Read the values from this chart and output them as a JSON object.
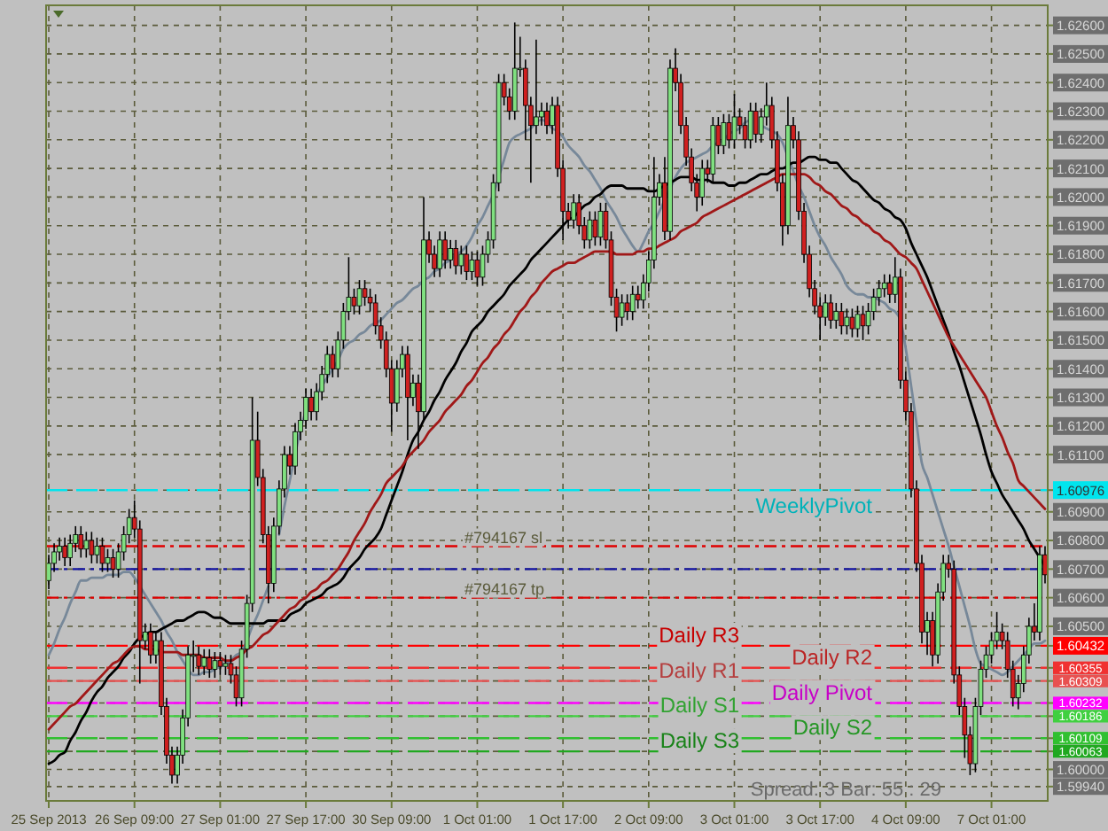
{
  "chart_data": {
    "type": "candlestick",
    "categories": [
      "25 Sep 2013",
      null,
      null,
      null,
      null,
      null,
      null,
      null,
      null,
      null,
      null,
      null,
      null,
      null,
      null,
      null,
      "26 Sep 09:00",
      null,
      null,
      null,
      null,
      null,
      null,
      null,
      null,
      null,
      null,
      null,
      null,
      null,
      null,
      null,
      "27 Sep 01:00",
      null,
      null,
      null,
      null,
      null,
      null,
      null,
      null,
      null,
      null,
      null,
      null,
      null,
      null,
      null,
      "27 Sep 17:00",
      null,
      null,
      null,
      null,
      null,
      null,
      null,
      null,
      null,
      null,
      null,
      null,
      null,
      null,
      null,
      "30 Sep 09:00",
      null,
      null,
      null,
      null,
      null,
      null,
      null,
      null,
      null,
      null,
      null,
      null,
      null,
      null,
      null,
      "1 Oct 01:00",
      null,
      null,
      null,
      null,
      null,
      null,
      null,
      null,
      null,
      null,
      null,
      null,
      null,
      null,
      null,
      "1 Oct 17:00",
      null,
      null,
      null,
      null,
      null,
      null,
      null,
      null,
      null,
      null,
      null,
      null,
      null,
      null,
      null,
      "2 Oct 09:00",
      null,
      null,
      null,
      null,
      null,
      null,
      null,
      null,
      null,
      null,
      null,
      null,
      null,
      null,
      null,
      "3 Oct 01:00",
      null,
      null,
      null,
      null,
      null,
      null,
      null,
      null,
      null,
      null,
      null,
      null,
      null,
      null,
      null,
      "3 Oct 17:00",
      null,
      null,
      null,
      null,
      null,
      null,
      null,
      null,
      null,
      null,
      null,
      null,
      null,
      null,
      null,
      "4 Oct 09:00",
      null,
      null,
      null,
      null,
      null,
      null,
      null,
      null,
      null,
      null,
      null,
      null,
      null,
      null,
      null,
      "7 Oct 01:00",
      null,
      null,
      null,
      null,
      null,
      null,
      null,
      null,
      null,
      null
    ],
    "ohlc": [
      [
        1.6066,
        1.6075,
        1.6063,
        1.6072
      ],
      [
        1.6072,
        1.6079,
        1.6069,
        1.6076
      ],
      [
        1.6076,
        1.6081,
        1.6073,
        1.6078
      ],
      [
        1.6078,
        1.6081,
        1.6071,
        1.6074
      ],
      [
        1.6074,
        1.6082,
        1.6071,
        1.6079
      ],
      [
        1.6079,
        1.6085,
        1.6076,
        1.6082
      ],
      [
        1.6082,
        1.6085,
        1.6074,
        1.6077
      ],
      [
        1.6077,
        1.6083,
        1.6074,
        1.608
      ],
      [
        1.608,
        1.6083,
        1.6072,
        1.6075
      ],
      [
        1.6075,
        1.6081,
        1.6072,
        1.6078
      ],
      [
        1.6078,
        1.6081,
        1.6069,
        1.6072
      ],
      [
        1.6072,
        1.6077,
        1.6069,
        1.6074
      ],
      [
        1.6074,
        1.6077,
        1.6067,
        1.607
      ],
      [
        1.607,
        1.6079,
        1.6067,
        1.6076
      ],
      [
        1.6076,
        1.6085,
        1.6073,
        1.6082
      ],
      [
        1.6082,
        1.6091,
        1.6079,
        1.6088
      ],
      [
        1.6088,
        1.6094,
        1.6081,
        1.6084
      ],
      [
        1.6084,
        1.6087,
        1.603,
        1.6045
      ],
      [
        1.6045,
        1.6051,
        1.6042,
        1.6048
      ],
      [
        1.6048,
        1.6051,
        1.6037,
        1.604
      ],
      [
        1.604,
        1.6048,
        1.6037,
        1.6045
      ],
      [
        1.6045,
        1.6048,
        1.6019,
        1.6022
      ],
      [
        1.6022,
        1.6025,
        1.6002,
        1.6005
      ],
      [
        1.6005,
        1.6008,
        1.5995,
        1.5998
      ],
      [
        1.5998,
        1.6008,
        1.5995,
        1.6005
      ],
      [
        1.6005,
        1.6021,
        1.6002,
        1.6018
      ],
      [
        1.6018,
        1.6043,
        1.6015,
        1.604
      ],
      [
        1.604,
        1.6045,
        1.6034,
        1.604
      ],
      [
        1.604,
        1.6043,
        1.6033,
        1.6036
      ],
      [
        1.6036,
        1.6042,
        1.6033,
        1.6039
      ],
      [
        1.6039,
        1.6042,
        1.6032,
        1.6035
      ],
      [
        1.6035,
        1.6041,
        1.6032,
        1.6038
      ],
      [
        1.6038,
        1.6041,
        1.6033,
        1.6036
      ],
      [
        1.6036,
        1.604,
        1.6033,
        1.6037
      ],
      [
        1.6037,
        1.604,
        1.603,
        1.6033
      ],
      [
        1.6033,
        1.6036,
        1.6022,
        1.6025
      ],
      [
        1.6025,
        1.6045,
        1.6022,
        1.6042
      ],
      [
        1.6042,
        1.6061,
        1.6039,
        1.6058
      ],
      [
        1.6058,
        1.613,
        1.6055,
        1.6115
      ],
      [
        1.6115,
        1.6125,
        1.6099,
        1.6102
      ],
      [
        1.6102,
        1.6105,
        1.6079,
        1.6082
      ],
      [
        1.6082,
        1.6085,
        1.6058,
        1.6065
      ],
      [
        1.6065,
        1.6088,
        1.6062,
        1.6085
      ],
      [
        1.6085,
        1.6101,
        1.6082,
        1.6098
      ],
      [
        1.6098,
        1.6113,
        1.6095,
        1.611
      ],
      [
        1.611,
        1.6113,
        1.6103,
        1.6106
      ],
      [
        1.6106,
        1.6121,
        1.6103,
        1.6118
      ],
      [
        1.6118,
        1.6125,
        1.6115,
        1.6122
      ],
      [
        1.6122,
        1.6133,
        1.6119,
        1.613
      ],
      [
        1.613,
        1.6133,
        1.6122,
        1.6125
      ],
      [
        1.6125,
        1.6135,
        1.6122,
        1.6132
      ],
      [
        1.6132,
        1.6141,
        1.6129,
        1.6138
      ],
      [
        1.6138,
        1.6148,
        1.6135,
        1.6145
      ],
      [
        1.6145,
        1.6148,
        1.6137,
        1.614
      ],
      [
        1.614,
        1.6153,
        1.6137,
        1.615
      ],
      [
        1.615,
        1.6163,
        1.6147,
        1.616
      ],
      [
        1.616,
        1.6179,
        1.6157,
        1.6165
      ],
      [
        1.6165,
        1.6168,
        1.6159,
        1.6162
      ],
      [
        1.6162,
        1.6171,
        1.6159,
        1.6168
      ],
      [
        1.6168,
        1.6171,
        1.6162,
        1.6165
      ],
      [
        1.6165,
        1.6168,
        1.616,
        1.6163
      ],
      [
        1.6163,
        1.6166,
        1.6152,
        1.6155
      ],
      [
        1.6155,
        1.6158,
        1.6147,
        1.615
      ],
      [
        1.615,
        1.6153,
        1.6137,
        1.614
      ],
      [
        1.614,
        1.6143,
        1.6118,
        1.6128
      ],
      [
        1.6128,
        1.6143,
        1.6125,
        1.614
      ],
      [
        1.614,
        1.6148,
        1.6137,
        1.6145
      ],
      [
        1.6145,
        1.6148,
        1.6115,
        1.613
      ],
      [
        1.613,
        1.6138,
        1.6127,
        1.6135
      ],
      [
        1.6135,
        1.6138,
        1.6112,
        1.6125
      ],
      [
        1.6125,
        1.62,
        1.6122,
        1.6185
      ],
      [
        1.6185,
        1.6188,
        1.6177,
        1.618
      ],
      [
        1.618,
        1.6183,
        1.6172,
        1.6175
      ],
      [
        1.6175,
        1.6188,
        1.6172,
        1.6185
      ],
      [
        1.6185,
        1.6188,
        1.6175,
        1.6178
      ],
      [
        1.6178,
        1.6185,
        1.6175,
        1.6182
      ],
      [
        1.6182,
        1.6185,
        1.6173,
        1.6176
      ],
      [
        1.6176,
        1.6183,
        1.6173,
        1.618
      ],
      [
        1.618,
        1.6183,
        1.6171,
        1.6174
      ],
      [
        1.6174,
        1.6181,
        1.6171,
        1.6178
      ],
      [
        1.6178,
        1.6181,
        1.6169,
        1.6172
      ],
      [
        1.6172,
        1.6183,
        1.6169,
        1.618
      ],
      [
        1.618,
        1.6188,
        1.6177,
        1.6185
      ],
      [
        1.6185,
        1.6208,
        1.6182,
        1.6205
      ],
      [
        1.6205,
        1.6243,
        1.6202,
        1.624
      ],
      [
        1.624,
        1.6243,
        1.6232,
        1.6235
      ],
      [
        1.6235,
        1.6238,
        1.6227,
        1.623
      ],
      [
        1.623,
        1.6261,
        1.6227,
        1.6245
      ],
      [
        1.6245,
        1.6256,
        1.6242,
        1.6245
      ],
      [
        1.6245,
        1.6248,
        1.622,
        1.6232
      ],
      [
        1.6232,
        1.6235,
        1.6205,
        1.6225
      ],
      [
        1.6225,
        1.6255,
        1.6222,
        1.6228
      ],
      [
        1.6228,
        1.6233,
        1.6225,
        1.623
      ],
      [
        1.623,
        1.6233,
        1.6222,
        1.6225
      ],
      [
        1.6225,
        1.6235,
        1.6222,
        1.6232
      ],
      [
        1.6232,
        1.6235,
        1.6207,
        1.621
      ],
      [
        1.621,
        1.6213,
        1.6185,
        1.6195
      ],
      [
        1.6195,
        1.6198,
        1.6189,
        1.6192
      ],
      [
        1.6192,
        1.6201,
        1.6189,
        1.6198
      ],
      [
        1.6198,
        1.6201,
        1.6187,
        1.619
      ],
      [
        1.619,
        1.6193,
        1.6182,
        1.6185
      ],
      [
        1.6185,
        1.6195,
        1.6182,
        1.6192
      ],
      [
        1.6192,
        1.6195,
        1.6183,
        1.6186
      ],
      [
        1.6186,
        1.6198,
        1.6183,
        1.6195
      ],
      [
        1.6195,
        1.6198,
        1.6182,
        1.6185
      ],
      [
        1.6185,
        1.6188,
        1.6162,
        1.6165
      ],
      [
        1.6165,
        1.6168,
        1.6153,
        1.6158
      ],
      [
        1.6158,
        1.6166,
        1.6155,
        1.6163
      ],
      [
        1.6163,
        1.6166,
        1.6157,
        1.616
      ],
      [
        1.616,
        1.6169,
        1.6157,
        1.6166
      ],
      [
        1.6166,
        1.6169,
        1.6161,
        1.6164
      ],
      [
        1.6164,
        1.6173,
        1.6161,
        1.617
      ],
      [
        1.617,
        1.6181,
        1.6167,
        1.6178
      ],
      [
        1.6178,
        1.6214,
        1.6175,
        1.62
      ],
      [
        1.62,
        1.6208,
        1.6197,
        1.6205
      ],
      [
        1.6205,
        1.6214,
        1.6185,
        1.6188
      ],
      [
        1.6188,
        1.6248,
        1.6185,
        1.6245
      ],
      [
        1.6245,
        1.6252,
        1.6237,
        1.624
      ],
      [
        1.624,
        1.6243,
        1.6222,
        1.6225
      ],
      [
        1.6225,
        1.6228,
        1.6211,
        1.6214
      ],
      [
        1.6214,
        1.6217,
        1.6202,
        1.6205
      ],
      [
        1.6205,
        1.6208,
        1.6195,
        1.62
      ],
      [
        1.62,
        1.6213,
        1.6197,
        1.621
      ],
      [
        1.621,
        1.6213,
        1.6205,
        1.6208
      ],
      [
        1.6208,
        1.6228,
        1.6205,
        1.6225
      ],
      [
        1.6225,
        1.6228,
        1.6215,
        1.6218
      ],
      [
        1.6218,
        1.6229,
        1.6215,
        1.6226
      ],
      [
        1.6226,
        1.6229,
        1.6217,
        1.622
      ],
      [
        1.622,
        1.6236,
        1.6217,
        1.6228
      ],
      [
        1.6228,
        1.6231,
        1.6222,
        1.6225
      ],
      [
        1.6225,
        1.6228,
        1.6217,
        1.622
      ],
      [
        1.622,
        1.6233,
        1.6217,
        1.623
      ],
      [
        1.623,
        1.6233,
        1.6219,
        1.6222
      ],
      [
        1.6222,
        1.6231,
        1.6219,
        1.6228
      ],
      [
        1.6228,
        1.624,
        1.6225,
        1.6232
      ],
      [
        1.6232,
        1.6235,
        1.6217,
        1.622
      ],
      [
        1.622,
        1.6223,
        1.6202,
        1.6205
      ],
      [
        1.6205,
        1.6208,
        1.6183,
        1.619
      ],
      [
        1.619,
        1.6235,
        1.6187,
        1.6225
      ],
      [
        1.6225,
        1.6228,
        1.6217,
        1.622
      ],
      [
        1.622,
        1.6223,
        1.6192,
        1.6195
      ],
      [
        1.6195,
        1.6198,
        1.6177,
        1.618
      ],
      [
        1.618,
        1.6183,
        1.6165,
        1.6168
      ],
      [
        1.6168,
        1.6171,
        1.6159,
        1.6162
      ],
      [
        1.6162,
        1.6165,
        1.615,
        1.6158
      ],
      [
        1.6158,
        1.6166,
        1.6155,
        1.6163
      ],
      [
        1.6163,
        1.6166,
        1.6154,
        1.6157
      ],
      [
        1.6157,
        1.6163,
        1.6154,
        1.616
      ],
      [
        1.616,
        1.6163,
        1.6152,
        1.6155
      ],
      [
        1.6155,
        1.6161,
        1.6152,
        1.6158
      ],
      [
        1.6158,
        1.6161,
        1.6151,
        1.6154
      ],
      [
        1.6154,
        1.6162,
        1.6151,
        1.6159
      ],
      [
        1.6159,
        1.6162,
        1.615,
        1.6155
      ],
      [
        1.6155,
        1.6163,
        1.6152,
        1.616
      ],
      [
        1.616,
        1.6168,
        1.6157,
        1.6165
      ],
      [
        1.6165,
        1.6171,
        1.6162,
        1.6168
      ],
      [
        1.6168,
        1.6173,
        1.6165,
        1.617
      ],
      [
        1.617,
        1.6173,
        1.6163,
        1.6166
      ],
      [
        1.6166,
        1.6179,
        1.6163,
        1.6172
      ],
      [
        1.6172,
        1.6175,
        1.6133,
        1.6136
      ],
      [
        1.6136,
        1.6139,
        1.6122,
        1.6125
      ],
      [
        1.6125,
        1.6128,
        1.6095,
        1.6098
      ],
      [
        1.6098,
        1.6101,
        1.6069,
        1.6072
      ],
      [
        1.6072,
        1.6075,
        1.6044,
        1.6048
      ],
      [
        1.6048,
        1.6055,
        1.604,
        1.6052
      ],
      [
        1.6052,
        1.6055,
        1.6036,
        1.604
      ],
      [
        1.604,
        1.6065,
        1.6037,
        1.6062
      ],
      [
        1.6062,
        1.6075,
        1.6059,
        1.6072
      ],
      [
        1.6072,
        1.6075,
        1.6067,
        1.607
      ],
      [
        1.607,
        1.6073,
        1.603,
        1.6033
      ],
      [
        1.6033,
        1.6036,
        1.6019,
        1.6022
      ],
      [
        1.6022,
        1.6025,
        1.6004,
        1.6012
      ],
      [
        1.6012,
        1.6015,
        1.5998,
        1.6002
      ],
      [
        1.6002,
        1.6025,
        1.5999,
        1.6022
      ],
      [
        1.6022,
        1.6038,
        1.6019,
        1.6035
      ],
      [
        1.6035,
        1.6043,
        1.6032,
        1.604
      ],
      [
        1.604,
        1.6048,
        1.6037,
        1.6045
      ],
      [
        1.6045,
        1.6055,
        1.6042,
        1.6048
      ],
      [
        1.6048,
        1.6051,
        1.6042,
        1.6045
      ],
      [
        1.6045,
        1.6048,
        1.6032,
        1.6035
      ],
      [
        1.6035,
        1.6038,
        1.6022,
        1.6025
      ],
      [
        1.6025,
        1.6033,
        1.6021,
        1.603
      ],
      [
        1.603,
        1.6043,
        1.6027,
        1.604
      ],
      [
        1.604,
        1.6053,
        1.6037,
        1.605
      ],
      [
        1.605,
        1.6058,
        1.6045,
        1.6048
      ],
      [
        1.6048,
        1.6078,
        1.6045,
        1.6075
      ],
      [
        1.6075,
        1.6078,
        1.6065,
        1.6068
      ]
    ],
    "series": [
      {
        "type": "line",
        "color": "#778899",
        "values": [
          1.604,
          1.6044,
          1.6049,
          1.6053,
          1.6058,
          1.6062,
          1.6066,
          1.6066,
          1.6067,
          1.6067,
          1.6067,
          1.6068,
          1.6068,
          1.6068,
          1.6069,
          1.6069,
          1.6067,
          1.6064,
          1.6061,
          1.6058,
          1.6055,
          1.6052,
          1.6048,
          1.6045,
          1.6041,
          1.6038,
          1.6035,
          1.6033,
          1.6033,
          1.6034,
          1.6034,
          1.6035,
          1.6036,
          1.6037,
          1.6038,
          1.604,
          1.6041,
          1.6045,
          1.605,
          1.6054,
          1.6059,
          1.6064,
          null,
          1.6082,
          1.6092,
          1.6101,
          1.611,
          1.6119,
          1.6125,
          null,
          1.6131,
          1.6134,
          1.6137,
          1.614,
          1.6143,
          1.6147,
          1.6149,
          1.615,
          1.6152,
          1.6153,
          1.6155,
          1.6156,
          1.6157,
          1.6159,
          1.6161,
          1.6163,
          1.6164,
          1.6166,
          1.6168,
          1.6169,
          1.6171,
          1.6172,
          1.6174,
          1.6175,
          1.6177,
          1.6178,
          1.618,
          1.6181,
          1.6183,
          1.6186,
          1.619,
          1.6193,
          1.6197,
          1.6201,
          1.6207,
          1.6213,
          1.6219,
          1.6221,
          1.6222,
          1.6223,
          1.6224,
          1.6226,
          1.6227,
          1.6226,
          1.6224,
          1.6223,
          1.6221,
          1.6218,
          1.6216,
          1.6214,
          1.6211,
          1.6209,
          1.6206,
          1.6203,
          1.6199,
          1.6196,
          1.6193,
          1.6189,
          1.6186,
          1.6183,
          1.6181,
          1.6184,
          1.6188,
          1.6191,
          1.6195,
          1.6199,
          1.6203,
          1.6207,
          1.621,
          1.6212,
          1.6213,
          1.6214,
          1.6215,
          1.6216,
          1.6218,
          1.6219,
          1.622,
          1.6222,
          1.6223,
          1.6224,
          1.6226,
          1.6227,
          null,
          1.6225,
          1.6224,
          1.6223,
          1.6222,
          1.6219,
          1.6214,
          1.6209,
          1.6204,
          1.62,
          1.6195,
          1.619,
          1.6186,
          1.6183,
          1.6179,
          1.6176,
          1.6173,
          1.6169,
          1.6167,
          1.6166,
          1.6166,
          1.6165,
          1.6165,
          1.6164,
          1.6163,
          1.6161,
          1.616,
          1.6157,
          1.6147,
          1.6134,
          1.6121,
          1.6107,
          1.6102,
          1.6096,
          1.609,
          1.6084,
          1.6078,
          1.6071,
          1.6064,
          1.6057,
          1.605,
          1.6042,
          1.6037,
          1.6036,
          1.6035,
          1.6034,
          1.6033,
          1.6034,
          1.6036,
          1.6038,
          1.604,
          1.6042,
          1.6044,
          1.6044,
          1.6045
        ]
      },
      {
        "type": "line",
        "color": "#000000",
        "values": [
          1.6002,
          1.6003,
          1.6005,
          1.6006,
          1.601,
          1.6013,
          1.6017,
          1.602,
          1.6024,
          1.6027,
          1.6029,
          1.6032,
          1.6034,
          1.6036,
          1.6039,
          1.6041,
          1.6044,
          1.6046,
          1.6047,
          1.6048,
          1.6048,
          1.6049,
          1.605,
          1.6051,
          1.6052,
          1.6052,
          1.6053,
          1.6054,
          1.6055,
          1.6055,
          1.6054,
          1.6053,
          1.6053,
          1.6052,
          1.6051,
          1.6051,
          1.6051,
          1.6051,
          1.6051,
          1.6051,
          1.6051,
          1.6052,
          1.6052,
          1.6052,
          1.6052,
          1.6054,
          1.6055,
          1.6056,
          1.6058,
          1.6059,
          1.606,
          1.6061,
          1.6063,
          1.6064,
          1.6065,
          1.6067,
          1.607,
          1.6072,
          1.6074,
          1.6077,
          1.6079,
          1.6081,
          1.6084,
          1.6089,
          1.6094,
          1.6099,
          1.6104,
          1.611,
          1.6115,
          1.6118,
          1.6122,
          1.6125,
          1.6129,
          1.6132,
          1.6136,
          1.6139,
          1.6142,
          1.6146,
          1.6149,
          1.6153,
          1.6155,
          1.6157,
          1.616,
          1.6162,
          1.6164,
          1.6166,
          1.6169,
          1.6171,
          1.6173,
          1.6175,
          1.6178,
          1.618,
          1.6182,
          1.6184,
          1.6186,
          1.6188,
          1.619,
          1.6192,
          1.6193,
          1.6195,
          1.6197,
          1.6198,
          1.62,
          1.6201,
          1.6203,
          1.6204,
          1.6204,
          1.6204,
          1.6203,
          1.6203,
          1.6203,
          1.6203,
          1.6202,
          1.6202,
          1.6203,
          1.6204,
          1.6205,
          1.6206,
          1.6207,
          1.6207,
          1.6207,
          1.6206,
          1.6206,
          1.6206,
          1.6205,
          1.6205,
          1.6205,
          1.6204,
          1.6204,
          1.6205,
          1.6205,
          1.6206,
          1.6207,
          1.6208,
          1.6208,
          1.6209,
          1.621,
          1.621,
          1.6211,
          1.6212,
          1.6212,
          1.6213,
          1.6214,
          1.6214,
          1.6213,
          1.6213,
          1.6212,
          1.6212,
          1.621,
          1.6208,
          1.6206,
          1.6205,
          1.6203,
          1.6201,
          1.6199,
          1.6198,
          1.6196,
          1.6195,
          1.6193,
          1.6192,
          1.6189,
          1.6184,
          1.618,
          1.6176,
          1.6172,
          1.6167,
          1.6162,
          1.6157,
          1.6152,
          1.6146,
          1.6141,
          1.6135,
          1.6129,
          1.6123,
          1.6117,
          1.611,
          1.6104,
          1.61,
          1.6096,
          1.6093,
          1.609,
          1.6087,
          1.6084,
          1.608,
          1.6077,
          1.6074,
          1.6071
        ]
      },
      {
        "type": "line",
        "color": "#a01818",
        "values": [
          1.6014,
          1.6016,
          1.6018,
          1.602,
          1.6022,
          1.6023,
          1.6025,
          1.6027,
          1.6029,
          1.6031,
          1.6033,
          1.6035,
          1.6037,
          1.6038,
          1.604,
          1.6042,
          1.6043,
          1.6043,
          1.6042,
          1.6042,
          1.6042,
          1.6041,
          1.6041,
          1.6041,
          1.6041,
          1.604,
          1.604,
          1.604,
          1.604,
          1.6039,
          1.6039,
          1.6039,
          1.6039,
          1.6038,
          1.6038,
          1.6039,
          1.604,
          1.6042,
          1.6043,
          1.6045,
          1.6047,
          1.6048,
          1.605,
          1.6052,
          1.6054,
          1.6056,
          1.6057,
          1.6059,
          1.606,
          1.6062,
          1.6063,
          1.6065,
          1.6066,
          1.6068,
          1.607,
          1.6073,
          1.6076,
          1.608,
          1.6083,
          1.6086,
          1.609,
          1.6093,
          1.6096,
          1.61,
          1.6102,
          1.6104,
          1.6106,
          1.6109,
          1.6111,
          1.6113,
          1.6115,
          1.6118,
          1.612,
          1.6122,
          1.6125,
          1.6127,
          1.6129,
          1.6131,
          1.6134,
          1.6136,
          1.6139,
          1.6142,
          1.6144,
          1.6147,
          1.6149,
          1.6152,
          1.6154,
          1.6157,
          1.616,
          1.6162,
          1.6165,
          1.6167,
          1.617,
          1.6172,
          1.6174,
          1.6175,
          1.6176,
          1.6177,
          1.6177,
          1.6178,
          1.6179,
          1.618,
          1.6181,
          1.6181,
          1.6181,
          1.6181,
          1.618,
          1.618,
          1.618,
          1.618,
          1.6181,
          1.6181,
          1.6182,
          1.6182,
          1.6183,
          1.6184,
          1.6185,
          1.6186,
          1.6188,
          1.6189,
          1.619,
          1.6191,
          1.6193,
          1.6194,
          1.6195,
          1.6196,
          1.6197,
          1.6198,
          1.6199,
          1.62,
          1.6201,
          1.6202,
          1.6203,
          1.6204,
          1.6205,
          1.6206,
          1.6207,
          1.6208,
          1.6208,
          1.6208,
          1.6208,
          1.6208,
          1.6207,
          1.6205,
          1.6204,
          1.6202,
          1.6201,
          1.6199,
          1.6197,
          1.6196,
          1.6194,
          1.6193,
          1.6191,
          1.619,
          1.6188,
          1.6187,
          1.6185,
          1.6184,
          1.6182,
          1.618,
          1.6179,
          1.6177,
          1.6175,
          1.6171,
          1.6167,
          1.6163,
          1.6159,
          1.6155,
          1.6151,
          1.6148,
          1.6145,
          1.6142,
          1.6139,
          1.6136,
          1.6133,
          1.613,
          1.6125,
          1.612,
          1.6116,
          1.6111,
          1.6107,
          1.6101,
          1.6099,
          1.6097,
          1.6095,
          1.6093,
          1.6091
        ]
      }
    ],
    "ylim": [
      1.5989,
      1.6267
    ],
    "yticks": [
      {
        "value": 1.5994,
        "label": "1.59940"
      },
      {
        "value": 1.6,
        "label": "1.60000"
      },
      {
        "value": 1.60063,
        "label": "1.60063"
      },
      {
        "value": 1.60109,
        "label": "1.60109"
      },
      {
        "value": 1.60186,
        "label": "1.60186"
      },
      {
        "value": 1.60232,
        "label": "1.60232"
      },
      {
        "value": 1.60309,
        "label": "1.60309"
      },
      {
        "value": 1.60355,
        "label": "1.60355"
      },
      {
        "value": 1.60432,
        "label": "1.60432"
      },
      {
        "value": 1.605,
        "label": "1.60500"
      },
      {
        "value": 1.606,
        "label": "1.60600"
      },
      {
        "value": 1.607,
        "label": "1.60700"
      },
      {
        "value": 1.608,
        "label": "1.60800"
      },
      {
        "value": 1.609,
        "label": "1.60900"
      },
      {
        "value": 1.60976,
        "label": "1.60976"
      },
      {
        "value": 1.611,
        "label": "1.61100"
      },
      {
        "value": 1.612,
        "label": "1.61200"
      },
      {
        "value": 1.613,
        "label": "1.61300"
      },
      {
        "value": 1.614,
        "label": "1.61400"
      },
      {
        "value": 1.615,
        "label": "1.61500"
      },
      {
        "value": 1.616,
        "label": "1.61600"
      },
      {
        "value": 1.617,
        "label": "1.61700"
      },
      {
        "value": 1.618,
        "label": "1.61800"
      },
      {
        "value": 1.619,
        "label": "1.61900"
      },
      {
        "value": 1.62,
        "label": "1.62000"
      },
      {
        "value": 1.621,
        "label": "1.62100"
      },
      {
        "value": 1.622,
        "label": "1.62200"
      },
      {
        "value": 1.623,
        "label": "1.62300"
      },
      {
        "value": 1.624,
        "label": "1.62400"
      },
      {
        "value": 1.625,
        "label": "1.62500"
      },
      {
        "value": 1.626,
        "label": "1.62600"
      }
    ],
    "grid": true,
    "ref_lines": [
      {
        "axis": "y",
        "value": 1.60976,
        "label": "WeeklyPivot",
        "color": "#00e5ee",
        "line_style": "dashed"
      },
      {
        "axis": "y",
        "value": 1.6078,
        "label": "#794167 sl",
        "color": "#e00000",
        "line_style": "dotted"
      },
      {
        "axis": "y",
        "value": 1.607,
        "color": "#1010a0",
        "line_style": "dotted"
      },
      {
        "axis": "y",
        "value": 1.606,
        "label": "#794167 tp",
        "color": "#e00000",
        "line_style": "dotted"
      },
      {
        "axis": "y",
        "value": 1.60432,
        "label": "Daily R3",
        "color": "#ff0000",
        "line_style": "dashed"
      },
      {
        "axis": "y",
        "value": 1.60355,
        "label": "Daily R2",
        "color": "#f03030",
        "line_style": "dashed"
      },
      {
        "axis": "y",
        "value": 1.60309,
        "label": "Daily R1",
        "color": "#e85050",
        "line_style": "dashed"
      },
      {
        "axis": "y",
        "value": 1.60232,
        "label": "Daily Pivot",
        "color": "#ff00ff",
        "line_style": "dashed"
      },
      {
        "axis": "y",
        "value": 1.60186,
        "label": "Daily S1",
        "color": "#40d040",
        "line_style": "dashed"
      },
      {
        "axis": "y",
        "value": 1.60109,
        "label": "Daily S2",
        "color": "#30c030",
        "line_style": "dashed"
      },
      {
        "axis": "y",
        "value": 1.60063,
        "label": "Daily S3",
        "color": "#20a820",
        "line_style": "dashed"
      }
    ],
    "annotations": [
      "Spread: 3   Bar: 55 : 29"
    ]
  }
}
